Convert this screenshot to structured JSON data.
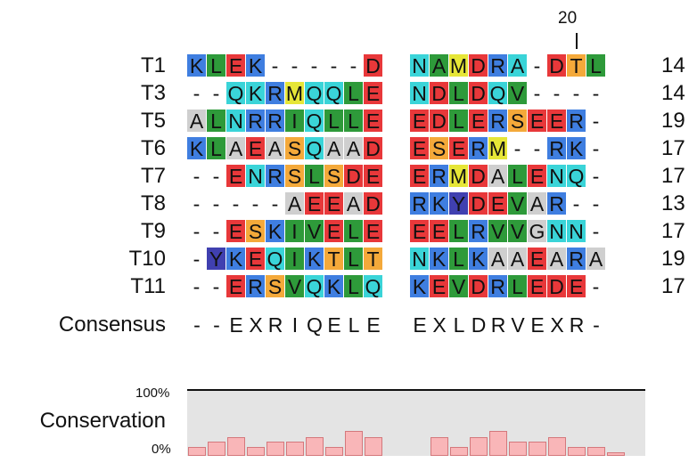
{
  "ruler": {
    "label": "20",
    "column": 19
  },
  "columns": 21,
  "gap_after_column": 10,
  "rows": [
    {
      "name": "T1",
      "seq": "KLEK-----D NAMDRA-DTL",
      "count": "14"
    },
    {
      "name": "T3",
      "seq": "--QKRMQQLE NDLDQV----",
      "count": "14"
    },
    {
      "name": "T5",
      "seq": "ALNRRIQLLE EDLERSEER-",
      "count": "19"
    },
    {
      "name": "T6",
      "seq": "KLAEASQAAD ESERM--RK-",
      "count": "17"
    },
    {
      "name": "T7",
      "seq": "--ENRSLSDE ERMDALENQ-",
      "count": "17"
    },
    {
      "name": "T8",
      "seq": "-----AEEAD RKYDEVAR--",
      "count": "13"
    },
    {
      "name": "T9",
      "seq": "--ESKIVELE EELRVVGNN-",
      "count": "17"
    },
    {
      "name": "T10",
      "seq": "-YKEQIKTLT NKLKAAEARA",
      "count": "19"
    },
    {
      "name": "T11",
      "seq": "--ERSVQKLQ KEVDRLEDE-",
      "count": "17"
    }
  ],
  "consensus": {
    "label": "Consensus",
    "seq": "--EXRIQELE EXLDRVEXR-"
  },
  "conservation": {
    "label": "Conservation",
    "max_label": "100%",
    "min_label": "0%",
    "values": [
      0.14,
      0.22,
      0.3,
      0.14,
      0.22,
      0.22,
      0.3,
      0.14,
      0.39,
      0.3,
      null,
      0.3,
      0.14,
      0.3,
      0.39,
      0.22,
      0.22,
      0.3,
      0.14,
      0.14,
      0.05
    ]
  },
  "colors": {
    "K": "#3f7ee0",
    "R": "#3f7ee0",
    "E": "#e8383a",
    "D": "#e8383a",
    "Q": "#3ad4d8",
    "N": "#3ad4d8",
    "L": "#2e9a3a",
    "I": "#2e9a3a",
    "V": "#2e9a3a",
    "A": "#2e9a3a",
    "M": "#2e9a3a",
    "S": "#f4a93a",
    "T": "#f4a93a",
    "Y": "#4040b0",
    "G": "#f4a93a",
    "gray": "#cfcfcf",
    "dark_bg": "#4040b0"
  },
  "cell_styles": [
    "B G R B . . . . . R  C G Y R B C . R O G",
    ". . C C B Y C C G R  C R G R C G . . . .",
    "g G C B B G C G G R  R R G R B O R R B .",
    "B G g R g O C g g R  R O R B Y . . B B .",
    ". . R C B O G O R R  R B Y R g G R C C .",
    ". . . . . g R R g R  B B P R R G g B . .",
    ". . R O B G G R G R  R R G B G G g C C .",
    ". P B R C G B O G O  C B G B g g R g B g",
    ". . R B O G C B G C  B R G R B G R R R ."
  ]
}
